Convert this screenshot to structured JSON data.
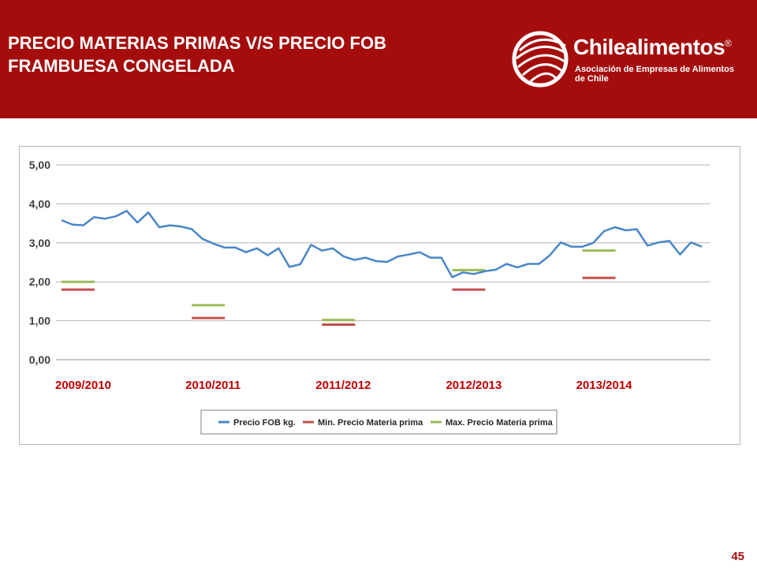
{
  "header": {
    "title_line1": "PRECIO MATERIAS PRIMAS V/S PRECIO FOB",
    "title_line2": "FRAMBUESA CONGELADA",
    "logo_name": "Chilealimentos",
    "logo_registered": "®",
    "logo_subtitle": "Asociación de Empresas de Alimentos de Chile"
  },
  "colors": {
    "header_bg": "#a50d0d",
    "fob_line": "#4a86c8",
    "min_line": "#c0504d",
    "max_line": "#9bbb59",
    "season_label": "#c00000"
  },
  "page_number": "45",
  "chart_data": {
    "type": "line",
    "title": "",
    "xlabel": "",
    "ylabel": "",
    "ylim": [
      0,
      5
    ],
    "y_ticks": [
      "0,00",
      "1,00",
      "2,00",
      "3,00",
      "4,00",
      "5,00"
    ],
    "grid": true,
    "legend_position": "bottom",
    "season_labels": [
      "2009/2010",
      "2010/2011",
      "2011/2012",
      "2012/2013",
      "2013/2014"
    ],
    "series": [
      {
        "name": "Precio FOB kg.",
        "values": [
          3.58,
          3.47,
          3.45,
          3.66,
          3.62,
          3.68,
          3.82,
          3.52,
          3.78,
          3.4,
          3.45,
          3.42,
          3.35,
          3.1,
          2.98,
          2.88,
          2.88,
          2.76,
          2.86,
          2.68,
          2.86,
          2.38,
          2.45,
          2.95,
          2.8,
          2.86,
          2.65,
          2.56,
          2.62,
          2.53,
          2.51,
          2.65,
          2.7,
          2.76,
          2.62,
          2.62,
          2.12,
          2.24,
          2.2,
          2.27,
          2.31,
          2.46,
          2.37,
          2.46,
          2.46,
          2.68,
          3.01,
          2.9,
          2.9,
          3.0,
          3.3,
          3.4,
          3.32,
          3.35,
          2.93,
          3.01,
          3.05,
          2.7,
          3.01,
          2.9
        ]
      },
      {
        "name": "Min. Precio Materia prima",
        "segments": [
          {
            "season": "2009/2010",
            "value": 1.8
          },
          {
            "season": "2010/2011",
            "value": 1.07
          },
          {
            "season": "2011/2012",
            "value": 0.9
          },
          {
            "season": "2012/2013",
            "value": 1.8
          },
          {
            "season": "2013/2014",
            "value": 2.1
          }
        ]
      },
      {
        "name": "Max. Precio Materia prima",
        "segments": [
          {
            "season": "2009/2010",
            "value": 2.0
          },
          {
            "season": "2010/2011",
            "value": 1.4
          },
          {
            "season": "2011/2012",
            "value": 1.02
          },
          {
            "season": "2012/2013",
            "value": 2.3
          },
          {
            "season": "2013/2014",
            "value": 2.8
          }
        ]
      }
    ]
  }
}
